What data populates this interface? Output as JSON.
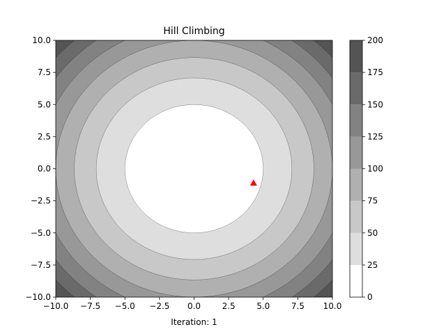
{
  "chart_data": {
    "type": "contourf",
    "title": "Hill Climbing",
    "xlabel": "Iteration: 1",
    "ylabel": "",
    "xlim": [
      -10,
      10
    ],
    "ylim": [
      -10,
      10
    ],
    "function": "x^2 + y^2",
    "levels": [
      0,
      25,
      50,
      75,
      100,
      125,
      150,
      175,
      200
    ],
    "level_colors": [
      "#ffffff",
      "#dedede",
      "#c8c8c8",
      "#b0b0b0",
      "#989898",
      "#828282",
      "#6a6a6a",
      "#545454"
    ],
    "x_ticks": [
      "−10.0",
      "−7.5",
      "−5.0",
      "−2.5",
      "0.0",
      "2.5",
      "5.0",
      "7.5",
      "10.0"
    ],
    "y_ticks": [
      "−10.0",
      "−7.5",
      "−5.0",
      "−2.5",
      "0.0",
      "2.5",
      "5.0",
      "7.5",
      "10.0"
    ],
    "colorbar_ticks": [
      "0",
      "25",
      "50",
      "75",
      "100",
      "125",
      "150",
      "175",
      "200"
    ],
    "points": [
      {
        "x": 4.3,
        "y": -1.1,
        "marker": "triangle",
        "color": "#ff0000"
      }
    ]
  }
}
